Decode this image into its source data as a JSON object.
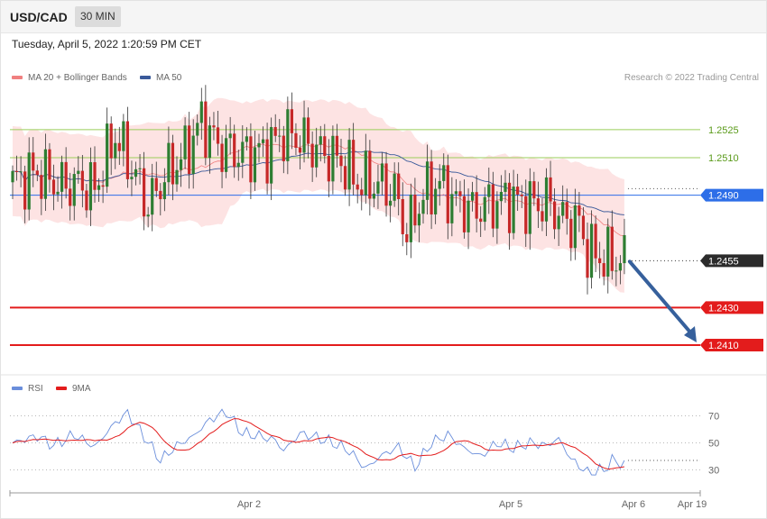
{
  "header": {
    "symbol": "USD/CAD",
    "interval": "30 MIN",
    "datetime": "Tuesday, April 5, 2022 1:20:59 PM CET",
    "copyright": "Research © 2022 Trading Central"
  },
  "legend": {
    "bollinger": "MA 20 + Bollinger Bands",
    "ma50": "MA 50",
    "rsi": "RSI",
    "rsi_ma": "9MA"
  },
  "colors": {
    "bull": "#2e7d32",
    "bear": "#c62828",
    "bollinger_band": "#fde3e3",
    "ma20": "#f08080",
    "ma50": "#3a5a9a",
    "resistance": "#9acd5a",
    "pivot": "#2d6ee8",
    "support": "#e31c1c",
    "current": "#2b2b2b",
    "arrow": "#36609c",
    "rsi": "#6a8edb",
    "rsi_ma": "#e31c1c"
  },
  "chart_data": [
    {
      "type": "candlestick",
      "ylim": [
        1.2397,
        1.2548
      ],
      "x_labels": [
        "Apr 2",
        "Apr 5",
        "Apr 6",
        "Apr 19"
      ],
      "price_levels": [
        {
          "label": "1.2525",
          "value": 1.2525,
          "kind": "resistance"
        },
        {
          "label": "1.2510",
          "value": 1.251,
          "kind": "resistance"
        },
        {
          "label": "1.2490",
          "value": 1.249,
          "kind": "pivot"
        },
        {
          "label": "1.2455",
          "value": 1.2455,
          "kind": "current"
        },
        {
          "label": "1.2430",
          "value": 1.243,
          "kind": "support"
        },
        {
          "label": "1.2410",
          "value": 1.241,
          "kind": "support"
        }
      ],
      "projection": {
        "from": 1.2455,
        "to": 1.241,
        "direction": "down"
      },
      "anchors": [
        [
          0,
          1.2497
        ],
        [
          6,
          1.2502
        ],
        [
          12,
          1.2495
        ],
        [
          16,
          1.2496
        ],
        [
          20,
          1.2493
        ],
        [
          25,
          1.2522
        ],
        [
          30,
          1.25
        ],
        [
          33,
          1.2484
        ],
        [
          37,
          1.25
        ],
        [
          42,
          1.2512
        ],
        [
          46,
          1.253
        ],
        [
          50,
          1.2516
        ],
        [
          54,
          1.2513
        ],
        [
          58,
          1.2512
        ],
        [
          62,
          1.2514
        ],
        [
          66,
          1.2523
        ],
        [
          70,
          1.252
        ],
        [
          75,
          1.2513
        ],
        [
          80,
          1.2508
        ],
        [
          84,
          1.2497
        ],
        [
          89,
          1.2496
        ],
        [
          93,
          1.2492
        ],
        [
          96,
          1.247
        ],
        [
          100,
          1.249
        ],
        [
          104,
          1.2496
        ],
        [
          108,
          1.2486
        ],
        [
          112,
          1.2482
        ],
        [
          116,
          1.2485
        ],
        [
          120,
          1.2488
        ],
        [
          124,
          1.2486
        ],
        [
          128,
          1.2485
        ],
        [
          130,
          1.2487
        ],
        [
          134,
          1.2477
        ],
        [
          138,
          1.2475
        ],
        [
          140,
          1.246
        ],
        [
          144,
          1.2456
        ],
        [
          149,
          1.2455
        ]
      ]
    },
    {
      "type": "line",
      "name": "RSI",
      "ylim": [
        19,
        81
      ],
      "levels": [
        70,
        50,
        30
      ],
      "anchors": [
        [
          0,
          50
        ],
        [
          6,
          55
        ],
        [
          10,
          48
        ],
        [
          15,
          56
        ],
        [
          20,
          47
        ],
        [
          25,
          65
        ],
        [
          28,
          72
        ],
        [
          32,
          55
        ],
        [
          36,
          37
        ],
        [
          40,
          48
        ],
        [
          44,
          55
        ],
        [
          48,
          67
        ],
        [
          52,
          73
        ],
        [
          56,
          57
        ],
        [
          60,
          55
        ],
        [
          64,
          52
        ],
        [
          66,
          44
        ],
        [
          70,
          57
        ],
        [
          74,
          54
        ],
        [
          78,
          50
        ],
        [
          82,
          44
        ],
        [
          86,
          31
        ],
        [
          90,
          41
        ],
        [
          94,
          47
        ],
        [
          98,
          32
        ],
        [
          102,
          50
        ],
        [
          106,
          56
        ],
        [
          110,
          46
        ],
        [
          114,
          40
        ],
        [
          118,
          50
        ],
        [
          122,
          46
        ],
        [
          126,
          50
        ],
        [
          130,
          48
        ],
        [
          133,
          53
        ],
        [
          136,
          38
        ],
        [
          140,
          28
        ],
        [
          144,
          30
        ],
        [
          146,
          37
        ],
        [
          149,
          34
        ]
      ]
    }
  ]
}
